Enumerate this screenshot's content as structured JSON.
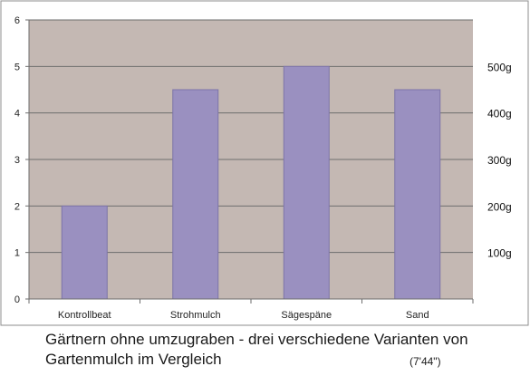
{
  "chart_data": {
    "type": "bar",
    "categories": [
      "Kontrollbeat",
      "Strohmulch",
      "Sägespäne",
      "Sand"
    ],
    "values": [
      2,
      4.5,
      5,
      4.5
    ],
    "ylim": [
      0,
      6
    ],
    "yticks": [
      "0",
      "1",
      "2",
      "3",
      "4",
      "5",
      "6"
    ],
    "right_axis_labels": [
      {
        "value": 1,
        "label": "100g"
      },
      {
        "value": 2,
        "label": "200g"
      },
      {
        "value": 3,
        "label": "300g"
      },
      {
        "value": 4,
        "label": "400g"
      },
      {
        "value": 5,
        "label": "500g"
      }
    ],
    "grid": true,
    "colors": {
      "plot_background": "#c4b8b3",
      "bar_fill": "#9a90c0",
      "bar_stroke": "#7d74a8",
      "gridline": "#6e6e6e",
      "frame": "#8c8c8c"
    }
  },
  "caption": {
    "line1": "Gärtnern ohne umzugraben - drei verschiedene Varianten von",
    "line2": "Gartenmulch im Vergleich",
    "timestamp": "(7'44\")"
  }
}
